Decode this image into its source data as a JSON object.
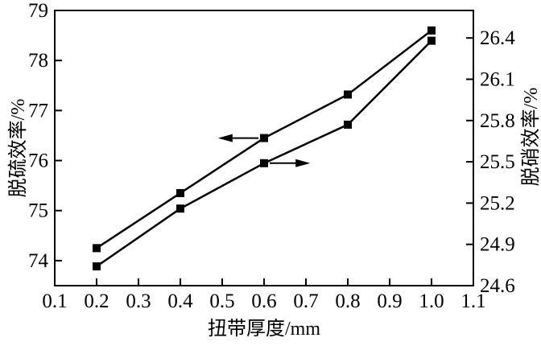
{
  "chart_data": {
    "type": "line",
    "title": "",
    "xlabel": "扭带厚度/mm",
    "grid": false,
    "legend": "none",
    "background_color": "#ffffff",
    "line_color": "#000000",
    "x_axis": {
      "min": 0.1,
      "max": 1.1,
      "tick_values": [
        0.1,
        0.2,
        0.3,
        0.4,
        0.5,
        0.6,
        0.7,
        0.8,
        0.9,
        1.0,
        1.1
      ],
      "tick_labels": [
        "0.1",
        "0.2",
        "0.3",
        "0.4",
        "0.5",
        "0.6",
        "0.7",
        "0.8",
        "0.9",
        "1.0",
        "1.1"
      ]
    },
    "left_axis": {
      "label": "脱硫效率/%",
      "min": 73.5,
      "max": 79.0,
      "tick_values": [
        74,
        75,
        76,
        77,
        78,
        79
      ],
      "tick_labels": [
        "74",
        "75",
        "76",
        "77",
        "78",
        "79"
      ]
    },
    "right_axis": {
      "label": "脱硝效率/%",
      "min": 24.6,
      "max": 26.6,
      "tick_values": [
        24.6,
        24.9,
        25.2,
        25.5,
        25.8,
        26.1,
        26.4
      ],
      "tick_labels": [
        "24.6",
        "24.9",
        "25.2",
        "25.5",
        "25.8",
        "26.1",
        "26.4"
      ]
    },
    "series": [
      {
        "name": "脱硫效率",
        "axis": "left",
        "marker": "square",
        "x": [
          0.2,
          0.4,
          0.6,
          0.8,
          1.0
        ],
        "values": [
          74.25,
          75.35,
          76.45,
          77.32,
          78.6
        ]
      },
      {
        "name": "脱硝效率",
        "axis": "right",
        "marker": "square",
        "x": [
          0.2,
          0.4,
          0.6,
          0.8,
          1.0
        ],
        "values": [
          24.74,
          25.16,
          25.49,
          25.77,
          26.38
        ]
      }
    ],
    "annotations": [
      {
        "type": "arrow",
        "series": 0,
        "at_x": 0.6,
        "direction": "left",
        "tip_x": 0.49
      },
      {
        "type": "arrow",
        "series": 1,
        "at_x": 0.6,
        "direction": "right",
        "tip_x": 0.71
      }
    ]
  }
}
